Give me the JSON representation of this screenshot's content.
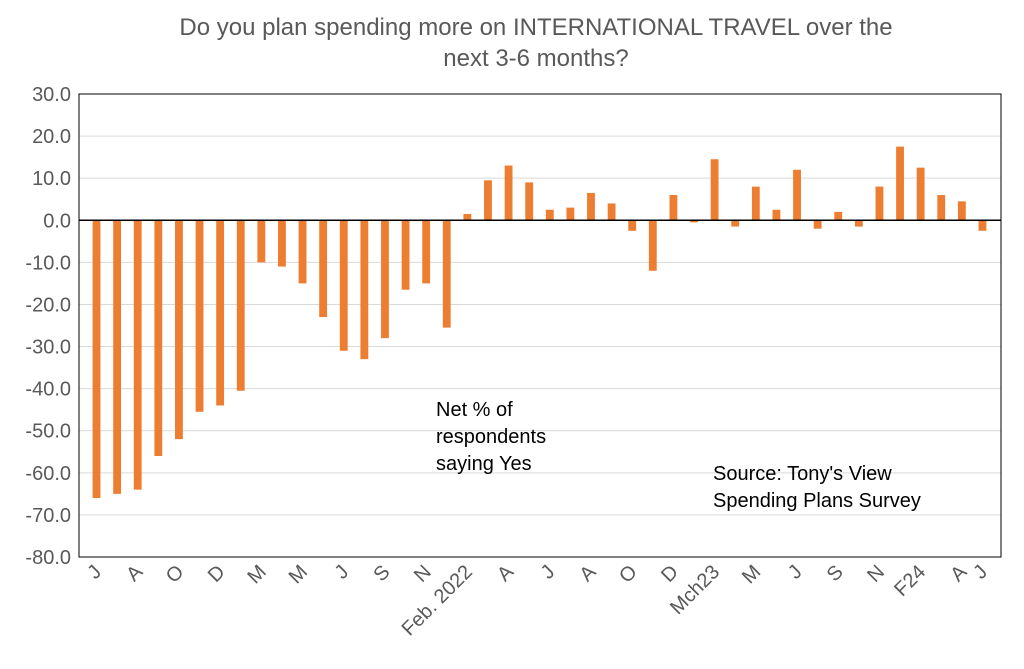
{
  "chart_data": {
    "type": "bar",
    "title": "Do you plan spending more on INTERNATIONAL TRAVEL over the next 3-6 months?",
    "xlabel": "",
    "ylabel": "",
    "ylim": [
      -80,
      30
    ],
    "yticks": [
      30,
      20,
      10,
      0,
      -10,
      -20,
      -30,
      -40,
      -50,
      -60,
      -70,
      -80
    ],
    "ytick_labels": [
      "30.0",
      "20.0",
      "10.0",
      "0.0",
      "-10.0",
      "-20.0",
      "-30.0",
      "-40.0",
      "-50.0",
      "-60.0",
      "-70.0",
      "-80.0"
    ],
    "grid": true,
    "bar_color": "#ED7D31",
    "series": [
      {
        "name": "Net % of respondents saying Yes",
        "values": [
          -66,
          -65,
          -64,
          -56,
          -52,
          -45.5,
          -44,
          -40.5,
          -10,
          -11,
          -15,
          -23,
          -31,
          -33,
          -28,
          -16.5,
          -15,
          -25.5,
          1.5,
          9.5,
          13,
          9,
          2.5,
          3,
          6.5,
          4,
          -2.5,
          -12,
          6,
          -0.5,
          14.5,
          -1.5,
          8,
          2.5,
          12,
          -2,
          2,
          -1.5,
          8,
          17.5,
          12.5,
          6,
          4.5,
          -2.5
        ]
      }
    ],
    "category_labels": [
      {
        "index": 0,
        "label": "J"
      },
      {
        "index": 2,
        "label": "A"
      },
      {
        "index": 4,
        "label": "O"
      },
      {
        "index": 6,
        "label": "D"
      },
      {
        "index": 8,
        "label": "M"
      },
      {
        "index": 10,
        "label": "M"
      },
      {
        "index": 12,
        "label": "J"
      },
      {
        "index": 14,
        "label": "S"
      },
      {
        "index": 16,
        "label": "N"
      },
      {
        "index": 18,
        "label": "Feb. 2022"
      },
      {
        "index": 20,
        "label": "A"
      },
      {
        "index": 22,
        "label": "J"
      },
      {
        "index": 24,
        "label": "A"
      },
      {
        "index": 26,
        "label": "O"
      },
      {
        "index": 28,
        "label": "D"
      },
      {
        "index": 30,
        "label": "Mch23"
      },
      {
        "index": 32,
        "label": "M"
      },
      {
        "index": 34,
        "label": "J"
      },
      {
        "index": 36,
        "label": "S"
      },
      {
        "index": 38,
        "label": "N"
      },
      {
        "index": 40,
        "label": "F24"
      },
      {
        "index": 42,
        "label": "A"
      },
      {
        "index": 43,
        "label": "J"
      }
    ],
    "annotations": {
      "net_label": [
        "Net % of",
        "respondents",
        "saying Yes"
      ],
      "source": [
        "Source: Tony's View",
        "Spending Plans Survey"
      ]
    }
  }
}
